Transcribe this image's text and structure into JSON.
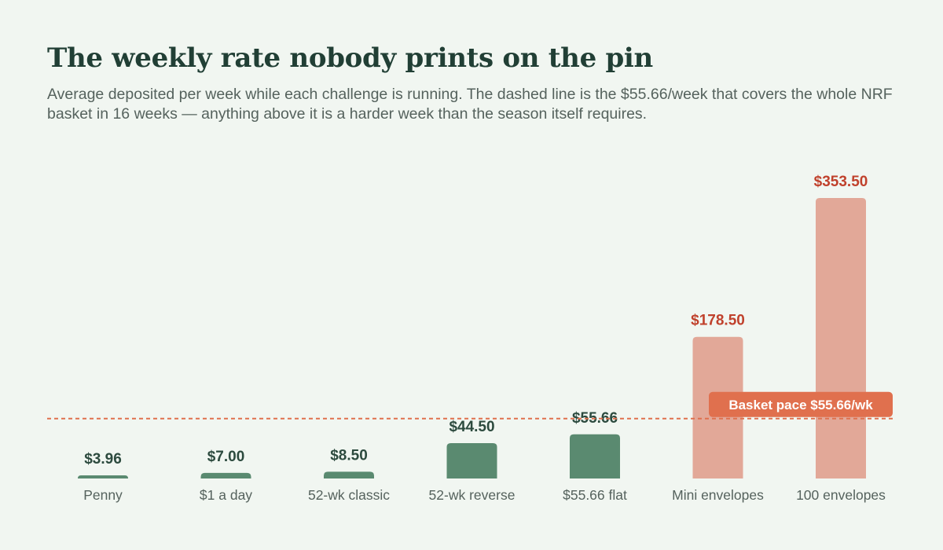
{
  "title": "The weekly rate nobody prints on the pin",
  "subtitle": "Average deposited per week while each challenge is running. The dashed line is the $55.66/week that covers the whole NRF basket in 16 weeks — anything above it is a harder week than the season itself requires.",
  "chart_data": {
    "type": "bar",
    "title": "The weekly rate nobody prints on the pin",
    "xlabel": "",
    "ylabel": "",
    "categories": [
      "Penny",
      "$1 a day",
      "52-wk classic",
      "52-wk reverse",
      "$55.66 flat",
      "Mini envelopes",
      "100 envelopes"
    ],
    "values": [
      3.96,
      7.0,
      8.5,
      44.5,
      55.66,
      178.5,
      353.5
    ],
    "value_labels": [
      "$3.96",
      "$7.00",
      "$8.50",
      "$44.50",
      "$55.66",
      "$178.50",
      "$353.50"
    ],
    "ylim": [
      0,
      353.5
    ],
    "grid": false,
    "reference_line": {
      "value": 55.66,
      "label": "Basket pace $55.66/wk",
      "style": "dashed"
    },
    "colors": {
      "below_or_at_pace_bar": "#5a8a70",
      "below_or_at_pace_label": "#2c4a3e",
      "above_pace_bar": "#e2a898",
      "above_pace_label": "#c0412c",
      "reference_line": "#e0704e",
      "reference_label_bg": "#e0704e",
      "background": "#f1f6f1"
    }
  }
}
